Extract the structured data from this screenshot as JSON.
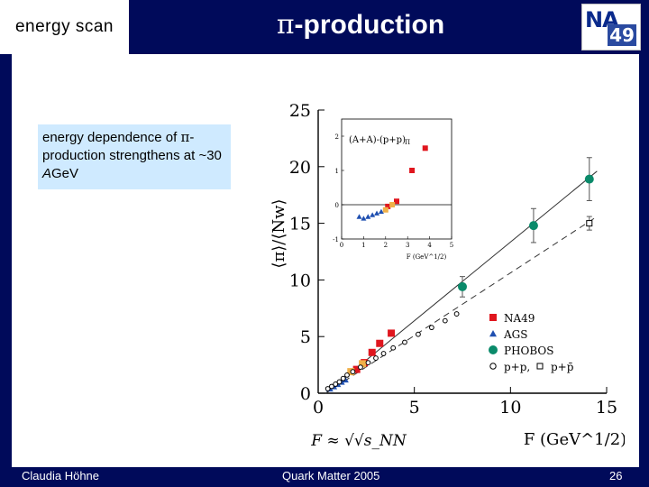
{
  "header": {
    "topic_label": "energy scan",
    "title_symbol": "π",
    "title_rest": "-production",
    "logo_na": "NA",
    "logo_49": "49"
  },
  "callout": {
    "text_1": "energy dependence of ",
    "symbol": "π",
    "text_2": "-production strengthens at ~30 ",
    "unit_italic": "A",
    "unit_rest": "GeV"
  },
  "footer": {
    "author": "Claudia Höhne",
    "event": "Quark Matter 2005",
    "page": "26"
  },
  "colors": {
    "background": "#000a5a",
    "callout": "#cfeaff",
    "na49": "#e0161e",
    "ags": "#1f4fb0",
    "phobos": "#0a8a6a",
    "na49_low": "#f0b048"
  },
  "chart_data": [
    {
      "type": "scatter",
      "xlabel": "F (GeV^1/2)",
      "ylabel": "⟨π⟩/⟨Nw⟩",
      "xlim": [
        0,
        15
      ],
      "ylim": [
        0,
        25
      ],
      "xticks": [
        0,
        5,
        10,
        15
      ],
      "yticks": [
        0,
        5,
        10,
        15,
        20,
        25
      ],
      "formula": "F ≈ √√s_NN",
      "legend_position": "bottom-right",
      "series": [
        {
          "name": "NA49",
          "marker": "square",
          "color": "#e0161e",
          "x": [
            2.0,
            2.4,
            2.8,
            3.2,
            3.8
          ],
          "y": [
            2.1,
            2.7,
            3.6,
            4.4,
            5.3
          ]
        },
        {
          "name": "NA49 low energy",
          "marker": "square",
          "color": "#f0b048",
          "x": [
            1.7,
            2.3
          ],
          "y": [
            1.9,
            2.6
          ]
        },
        {
          "name": "AGS",
          "marker": "triangle",
          "color": "#1f4fb0",
          "x": [
            0.6,
            0.8,
            1.0,
            1.2,
            1.4
          ],
          "y": [
            0.4,
            0.6,
            0.8,
            1.0,
            1.2
          ]
        },
        {
          "name": "PHOBOS",
          "marker": "circle",
          "color": "#0a8a6a",
          "x": [
            7.5,
            11.2,
            14.1
          ],
          "y": [
            9.4,
            14.8,
            18.9
          ],
          "yerr": [
            0.9,
            1.5,
            1.9
          ]
        },
        {
          "name": "p+p",
          "marker": "open-circle",
          "color": "#000000",
          "x": [
            0.5,
            0.7,
            0.9,
            1.1,
            1.3,
            1.5,
            1.8,
            2.2,
            2.6,
            3.0,
            3.4,
            3.9,
            4.5,
            5.2,
            5.9,
            6.6,
            7.2
          ],
          "y": [
            0.4,
            0.6,
            0.8,
            1.0,
            1.3,
            1.6,
            1.9,
            2.3,
            2.7,
            3.1,
            3.5,
            4.0,
            4.5,
            5.2,
            5.8,
            6.4,
            7.0
          ]
        },
        {
          "name": "p+p̄",
          "marker": "open-square",
          "color": "#000000",
          "x": [
            14.1
          ],
          "y": [
            15.0
          ],
          "yerr": [
            0.6
          ]
        }
      ],
      "lines": [
        {
          "style": "solid",
          "x": [
            0.4,
            14.5
          ],
          "y": [
            0.0,
            19.6
          ]
        },
        {
          "style": "dashed",
          "x": [
            0.4,
            14.5
          ],
          "y": [
            0.0,
            15.6
          ]
        }
      ],
      "legend": [
        "NA49",
        "AGS",
        "PHOBOS",
        "p+p,",
        "p+p̄"
      ]
    },
    {
      "type": "scatter",
      "title": "(A+A)-(p+p)",
      "title_sub": "Π",
      "xlabel": "F (GeV^1/2)",
      "xlim": [
        0,
        5
      ],
      "ylim": [
        -1,
        2.5
      ],
      "xticks": [
        0,
        1,
        2,
        3,
        4,
        5
      ],
      "yticks": [
        -1,
        0,
        1,
        2
      ],
      "series": [
        {
          "name": "AGS",
          "marker": "triangle",
          "color": "#1f4fb0",
          "x": [
            0.8,
            1.0,
            1.2,
            1.4,
            1.6,
            1.8
          ],
          "y": [
            -0.35,
            -0.4,
            -0.35,
            -0.3,
            -0.25,
            -0.2
          ]
        },
        {
          "name": "NA49",
          "marker": "square",
          "color": "#e0161e",
          "x": [
            2.1,
            2.5,
            3.2,
            3.8
          ],
          "y": [
            -0.05,
            0.1,
            1.0,
            1.65
          ]
        },
        {
          "name": "NA49 low energy",
          "marker": "square",
          "color": "#f0b048",
          "x": [
            2.0,
            2.3
          ],
          "y": [
            -0.15,
            0.0
          ]
        }
      ]
    }
  ]
}
